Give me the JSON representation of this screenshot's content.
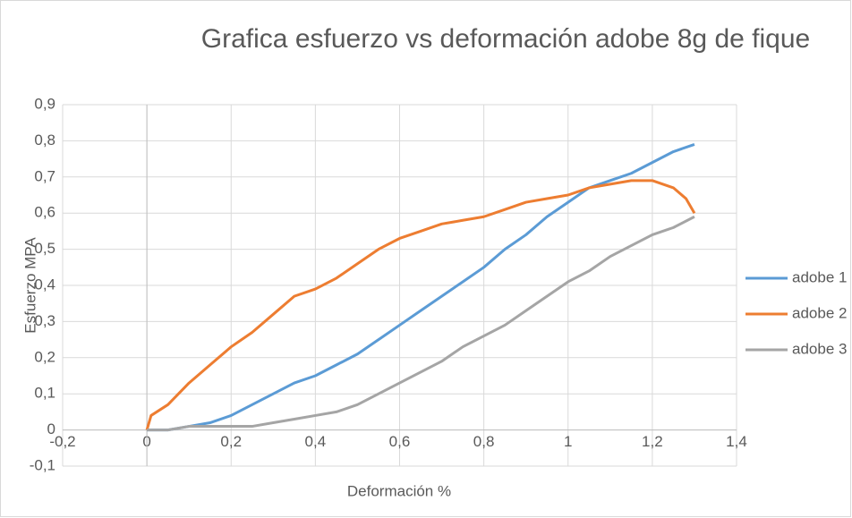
{
  "chart_data": {
    "type": "line",
    "title": "Grafica esfuerzo vs deformación adobe 8g de fique",
    "xlabel": "Deformación %",
    "ylabel": "Esfuerzo MPA",
    "xlim": [
      -0.2,
      1.4
    ],
    "ylim": [
      -0.1,
      0.9
    ],
    "xticks": [
      {
        "value": -0.2,
        "label": "-0,2"
      },
      0,
      {
        "value": 0.2,
        "label": "0,2"
      },
      {
        "value": 0.4,
        "label": "0,4"
      },
      {
        "value": 0.6,
        "label": "0,6"
      },
      {
        "value": 0.8,
        "label": "0,8"
      },
      1,
      {
        "value": 1.2,
        "label": "1,2"
      },
      {
        "value": 1.4,
        "label": "1,4"
      }
    ],
    "yticks": [
      {
        "value": -0.1,
        "label": "-0,1"
      },
      0,
      {
        "value": 0.1,
        "label": "0,1"
      },
      {
        "value": 0.2,
        "label": "0,2"
      },
      {
        "value": 0.3,
        "label": "0,3"
      },
      {
        "value": 0.4,
        "label": "0,4"
      },
      {
        "value": 0.5,
        "label": "0,5"
      },
      {
        "value": 0.6,
        "label": "0,6"
      },
      {
        "value": 0.7,
        "label": "0,7"
      },
      {
        "value": 0.8,
        "label": "0,8"
      },
      {
        "value": 0.9,
        "label": "0,9"
      }
    ],
    "grid": true,
    "legend": "right",
    "series": [
      {
        "name": "adobe 1",
        "color": "#5b9bd5",
        "x": [
          0,
          0.05,
          0.1,
          0.15,
          0.2,
          0.25,
          0.3,
          0.35,
          0.4,
          0.45,
          0.5,
          0.55,
          0.6,
          0.65,
          0.7,
          0.75,
          0.8,
          0.85,
          0.9,
          0.95,
          1.0,
          1.05,
          1.1,
          1.15,
          1.2,
          1.25,
          1.3
        ],
        "values": [
          0,
          0,
          0.01,
          0.02,
          0.04,
          0.07,
          0.1,
          0.13,
          0.15,
          0.18,
          0.21,
          0.25,
          0.29,
          0.33,
          0.37,
          0.41,
          0.45,
          0.5,
          0.54,
          0.59,
          0.63,
          0.67,
          0.69,
          0.71,
          0.74,
          0.77,
          0.79
        ]
      },
      {
        "name": "adobe 2",
        "color": "#ed7d31",
        "x": [
          0,
          0.01,
          0.05,
          0.1,
          0.15,
          0.2,
          0.25,
          0.3,
          0.35,
          0.4,
          0.45,
          0.5,
          0.55,
          0.6,
          0.65,
          0.7,
          0.75,
          0.8,
          0.85,
          0.9,
          0.95,
          1.0,
          1.05,
          1.1,
          1.15,
          1.2,
          1.25,
          1.28,
          1.3
        ],
        "values": [
          0,
          0.04,
          0.07,
          0.13,
          0.18,
          0.23,
          0.27,
          0.32,
          0.37,
          0.39,
          0.42,
          0.46,
          0.5,
          0.53,
          0.55,
          0.57,
          0.58,
          0.59,
          0.61,
          0.63,
          0.64,
          0.65,
          0.67,
          0.68,
          0.69,
          0.69,
          0.67,
          0.64,
          0.6
        ]
      },
      {
        "name": "adobe 3",
        "color": "#a5a5a5",
        "x": [
          0,
          0.05,
          0.1,
          0.15,
          0.2,
          0.25,
          0.3,
          0.35,
          0.4,
          0.45,
          0.5,
          0.55,
          0.6,
          0.65,
          0.7,
          0.75,
          0.8,
          0.85,
          0.9,
          0.95,
          1.0,
          1.05,
          1.1,
          1.15,
          1.2,
          1.25,
          1.3
        ],
        "values": [
          0,
          0,
          0.01,
          0.01,
          0.01,
          0.01,
          0.02,
          0.03,
          0.04,
          0.05,
          0.07,
          0.1,
          0.13,
          0.16,
          0.19,
          0.23,
          0.26,
          0.29,
          0.33,
          0.37,
          0.41,
          0.44,
          0.48,
          0.51,
          0.54,
          0.56,
          0.59
        ]
      }
    ]
  }
}
